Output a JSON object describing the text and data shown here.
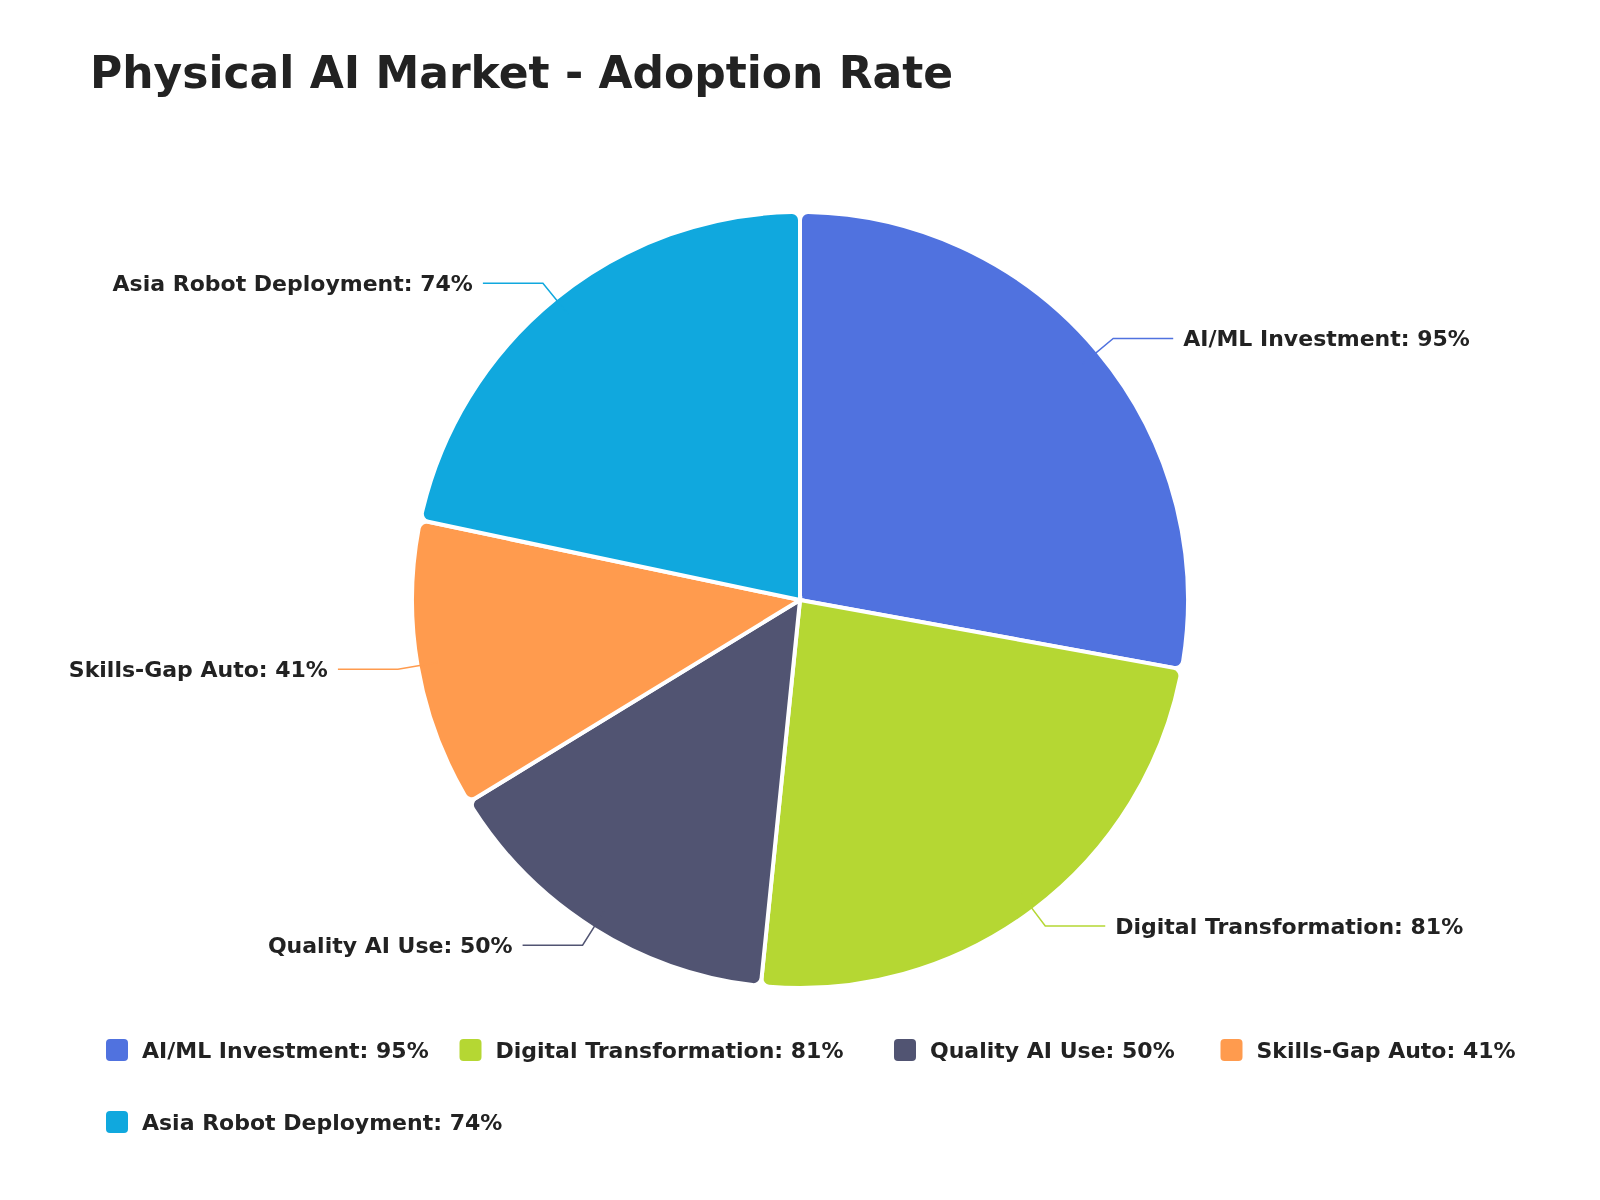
{
  "chart_data": {
    "type": "pie",
    "title": "Physical AI Market - Adoption Rate",
    "categories": [
      "AI/ML Investment",
      "Digital Transformation",
      "Quality AI Use",
      "Skills-Gap Auto",
      "Asia Robot Deployment"
    ],
    "values": [
      95,
      81,
      50,
      41,
      74
    ],
    "value_labels": [
      "95%",
      "81%",
      "50%",
      "41%",
      "74%"
    ],
    "colors": [
      "#5072df",
      "#b5d733",
      "#515472",
      "#ff9b4e",
      "#10a8de"
    ],
    "legend": "bottom"
  }
}
